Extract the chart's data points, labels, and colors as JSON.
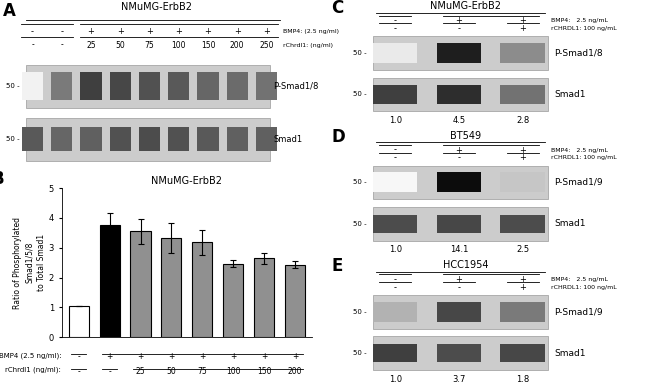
{
  "panel_A": {
    "label": "A",
    "title": "NMuMG-ErbB2",
    "bmp4_row": [
      "-",
      "-",
      "+",
      "+",
      "+",
      "+",
      "+",
      "+",
      "+"
    ],
    "rchrdl1_row": [
      "-",
      "-",
      "25",
      "50",
      "75",
      "100",
      "150",
      "200",
      "250"
    ],
    "bmp4_label": "BMP4: (2.5 ng/ml)",
    "rchrdl1_label": "rChrdl1: (ng/ml)",
    "blot1_label": "P-Smad1/8",
    "blot2_label": "Smad1",
    "band1_intensities": [
      0.05,
      0.52,
      0.75,
      0.72,
      0.68,
      0.65,
      0.6,
      0.58,
      0.55
    ],
    "band2_intensities": [
      0.65,
      0.6,
      0.62,
      0.68,
      0.7,
      0.68,
      0.65,
      0.62,
      0.62
    ]
  },
  "panel_B": {
    "label": "B",
    "title": "NMuMG-ErbB2",
    "ylabel": "Ratio of Phosphorylated\nSmad1/5/8\nto Total Smad1",
    "bar_values": [
      1.03,
      3.75,
      3.55,
      3.32,
      3.18,
      2.47,
      2.65,
      2.43
    ],
    "bar_errors": [
      0.0,
      0.42,
      0.42,
      0.5,
      0.42,
      0.12,
      0.18,
      0.12
    ],
    "bar_colors": [
      "white",
      "black",
      "#909090",
      "#909090",
      "#909090",
      "#909090",
      "#909090",
      "#909090"
    ],
    "bar_edgecolors": [
      "black",
      "black",
      "black",
      "black",
      "black",
      "black",
      "black",
      "black"
    ],
    "bmp4_row": [
      "-",
      "+",
      "+",
      "+",
      "+",
      "+",
      "+",
      "+"
    ],
    "rchrdl1_row": [
      "-",
      "-",
      "25",
      "50",
      "75",
      "100",
      "150",
      "200"
    ],
    "bmp4_label": "BMP4 (2.5 ng/ml):",
    "rchrdl1_label": "rChrdl1 (ng/ml):",
    "ylim": [
      0,
      5
    ],
    "yticks": [
      0,
      1,
      2,
      3,
      4,
      5
    ]
  },
  "panel_C": {
    "label": "C",
    "title": "NMuMG-ErbB2",
    "bmp4_row": [
      "-",
      "+",
      "+"
    ],
    "rchrdl1_row": [
      "-",
      "-",
      "+"
    ],
    "bmp4_label": "BMP4:   2.5 ng/mL",
    "rchrdl1_label": "rCHRDL1: 100 ng/mL",
    "blot1_label": "P-Smad1/8",
    "blot2_label": "Smad1",
    "values": [
      "1.0",
      "4.5",
      "2.8"
    ],
    "band1_intensities": [
      0.08,
      0.88,
      0.45
    ],
    "band2_intensities": [
      0.75,
      0.82,
      0.55
    ]
  },
  "panel_D": {
    "label": "D",
    "title": "BT549",
    "bmp4_row": [
      "-",
      "+",
      "+"
    ],
    "rchrdl1_row": [
      "-",
      "-",
      "+"
    ],
    "bmp4_label": "BMP4:   2.5 ng/mL",
    "rchrdl1_label": "rCHRDL1: 100 ng/mL",
    "blot1_label": "P-Smad1/9",
    "blot2_label": "Smad1",
    "values": [
      "1.0",
      "14.1",
      "2.5"
    ],
    "band1_intensities": [
      0.03,
      0.95,
      0.22
    ],
    "band2_intensities": [
      0.7,
      0.72,
      0.7
    ]
  },
  "panel_E": {
    "label": "E",
    "title": "HCC1954",
    "bmp4_row": [
      "-",
      "+",
      "+"
    ],
    "rchrdl1_row": [
      "-",
      "-",
      "+"
    ],
    "bmp4_label": "BMP4:   2.5 ng/mL",
    "rchrdl1_label": "rCHRDL1: 100 ng/mL",
    "blot1_label": "P-Smad1/9",
    "blot2_label": "Smad1",
    "values": [
      "1.0",
      "3.7",
      "1.8"
    ],
    "band1_intensities": [
      0.3,
      0.72,
      0.52
    ],
    "band2_intensities": [
      0.75,
      0.7,
      0.72
    ]
  },
  "figure_bg": "white",
  "blot_bg": "#cccccc",
  "blot_border_color": "#999999"
}
